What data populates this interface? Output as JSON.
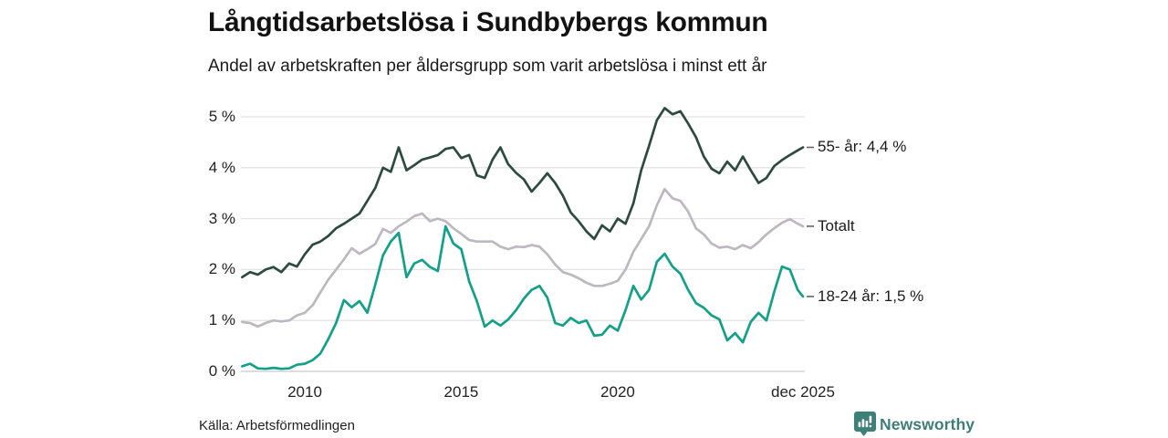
{
  "header": {
    "title": "Långtidsarbetslösa i Sundbybergs kommun",
    "subtitle": "Andel av arbetskraften per åldersgrupp som varit arbetslösa i minst ett år"
  },
  "footer": {
    "source": "Källa: Arbetsförmedlingen",
    "brand": "Newsworthy"
  },
  "colors": {
    "series_55": "#2d4a40",
    "series_total": "#bcb8c0",
    "series_1824": "#13a089",
    "gridline": "#e4e4e4",
    "zeroline": "#c9c9c9",
    "label_dash": "#666666",
    "brand": "#3d7f78"
  },
  "chart_data": {
    "type": "line",
    "title": "Långtidsarbetslösa i Sundbybergs kommun",
    "subtitle": "Andel av arbetskraften per åldersgrupp som varit arbetslösa i minst ett år",
    "grid": true,
    "legend_position": "end-of-line-labels-right",
    "x_axis": {
      "range": [
        2008,
        2025.92
      ],
      "ticks": [
        {
          "t": 2010,
          "label": "2010"
        },
        {
          "t": 2015,
          "label": "2015"
        },
        {
          "t": 2020,
          "label": "2020"
        },
        {
          "t": 2025.92,
          "label": "dec 2025"
        }
      ]
    },
    "y_axis": {
      "unit": "%",
      "range": [
        0,
        5
      ],
      "ticks": [
        {
          "value": 0,
          "label": "0 %"
        },
        {
          "value": 1,
          "label": "1 %"
        },
        {
          "value": 2,
          "label": "2 %"
        },
        {
          "value": 3,
          "label": "3 %"
        },
        {
          "value": 4,
          "label": "4 %"
        },
        {
          "value": 5,
          "label": "5 %"
        }
      ]
    },
    "x": [
      2008,
      2008.25,
      2008.5,
      2008.75,
      2009,
      2009.25,
      2009.5,
      2009.75,
      2010,
      2010.25,
      2010.5,
      2010.75,
      2011,
      2011.25,
      2011.5,
      2011.75,
      2012,
      2012.25,
      2012.5,
      2012.75,
      2013,
      2013.25,
      2013.5,
      2013.75,
      2014,
      2014.25,
      2014.5,
      2014.75,
      2015,
      2015.25,
      2015.5,
      2015.75,
      2016,
      2016.25,
      2016.5,
      2016.75,
      2017,
      2017.25,
      2017.5,
      2017.75,
      2018,
      2018.25,
      2018.5,
      2018.75,
      2019,
      2019.25,
      2019.5,
      2019.75,
      2020,
      2020.25,
      2020.5,
      2020.75,
      2021,
      2021.25,
      2021.5,
      2021.75,
      2022,
      2022.25,
      2022.5,
      2022.75,
      2023,
      2023.25,
      2023.5,
      2023.75,
      2024,
      2024.25,
      2024.5,
      2024.75,
      2025,
      2025.25,
      2025.5,
      2025.75,
      2025.92
    ],
    "series": [
      {
        "name": "55- år",
        "end_label": "55- år: 4,4 %",
        "last_value_text": "4,4 %",
        "color": "#2d4a40",
        "values": [
          1.85,
          1.95,
          1.9,
          2.0,
          2.05,
          1.95,
          2.12,
          2.06,
          2.3,
          2.49,
          2.55,
          2.66,
          2.81,
          2.9,
          3.0,
          3.1,
          3.35,
          3.6,
          4.0,
          3.92,
          4.4,
          3.95,
          4.05,
          4.16,
          4.2,
          4.25,
          4.37,
          4.4,
          4.19,
          4.25,
          3.85,
          3.8,
          4.16,
          4.4,
          4.07,
          3.9,
          3.77,
          3.53,
          3.7,
          3.89,
          3.7,
          3.45,
          3.12,
          2.95,
          2.75,
          2.6,
          2.87,
          2.75,
          3.0,
          2.9,
          3.3,
          3.95,
          4.43,
          4.93,
          5.17,
          5.05,
          5.11,
          4.87,
          4.6,
          4.22,
          3.98,
          3.89,
          4.12,
          3.95,
          4.22,
          3.95,
          3.7,
          3.8,
          4.03,
          4.15,
          4.25,
          4.34,
          4.4
        ]
      },
      {
        "name": "Totalt",
        "end_label": "Totalt",
        "last_value_text": "",
        "color": "#bcb8c0",
        "values": [
          0.97,
          0.95,
          0.88,
          0.95,
          1.0,
          0.98,
          1.0,
          1.1,
          1.15,
          1.3,
          1.55,
          1.8,
          2.0,
          2.2,
          2.42,
          2.31,
          2.4,
          2.5,
          2.8,
          2.72,
          2.85,
          2.94,
          3.05,
          3.1,
          2.95,
          3.0,
          2.95,
          2.81,
          2.7,
          2.58,
          2.55,
          2.55,
          2.55,
          2.45,
          2.4,
          2.45,
          2.44,
          2.48,
          2.45,
          2.3,
          2.1,
          1.95,
          1.9,
          1.83,
          1.74,
          1.68,
          1.68,
          1.72,
          1.78,
          2.0,
          2.35,
          2.6,
          2.85,
          3.26,
          3.58,
          3.4,
          3.35,
          3.14,
          2.81,
          2.69,
          2.51,
          2.43,
          2.45,
          2.4,
          2.48,
          2.42,
          2.54,
          2.69,
          2.81,
          2.92,
          2.99,
          2.9,
          2.85
        ]
      },
      {
        "name": "18-24 år",
        "end_label": "18-24 år: 1,5 %",
        "last_value_text": "1,5 %",
        "color": "#13a089",
        "values": [
          0.1,
          0.15,
          0.06,
          0.05,
          0.07,
          0.05,
          0.06,
          0.13,
          0.15,
          0.22,
          0.35,
          0.63,
          0.95,
          1.4,
          1.26,
          1.38,
          1.15,
          1.7,
          2.28,
          2.55,
          2.72,
          1.85,
          2.12,
          2.19,
          2.05,
          1.97,
          2.85,
          2.51,
          2.4,
          1.77,
          1.38,
          0.88,
          1.0,
          0.9,
          1.02,
          1.2,
          1.43,
          1.6,
          1.68,
          1.45,
          0.95,
          0.9,
          1.05,
          0.95,
          1.0,
          0.7,
          0.72,
          0.9,
          0.8,
          1.2,
          1.68,
          1.41,
          1.6,
          2.15,
          2.31,
          2.06,
          1.92,
          1.6,
          1.34,
          1.25,
          1.1,
          1.02,
          0.61,
          0.75,
          0.57,
          0.97,
          1.15,
          1.0,
          1.56,
          2.06,
          2.0,
          1.6,
          1.47
        ]
      }
    ]
  }
}
